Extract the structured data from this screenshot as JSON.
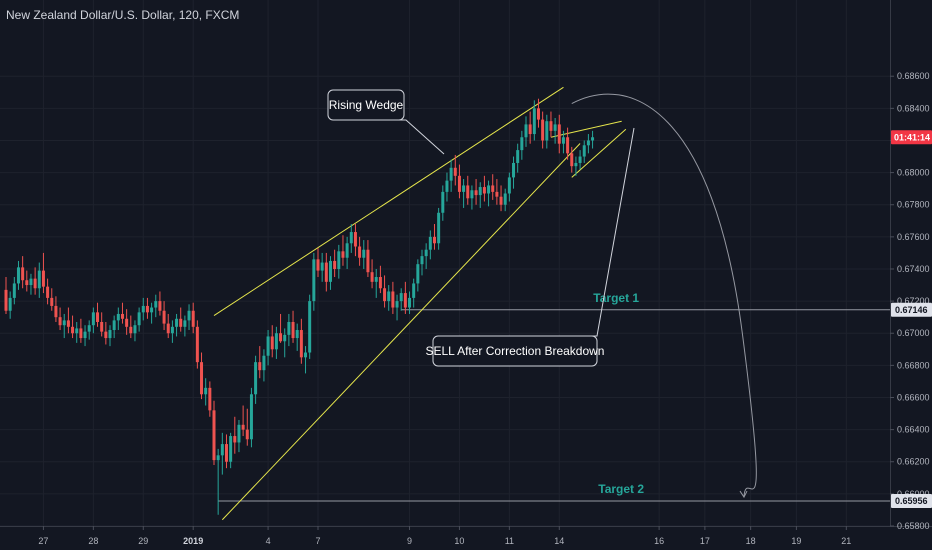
{
  "chart_data": {
    "type": "candlestick",
    "title": "New Zealand Dollar/U.S. Dollar, 120, FXCM",
    "ylim": [
      0.658,
      0.6895
    ],
    "y_ticks": [
      "0.68600",
      "0.68400",
      "0.68200",
      "0.68000",
      "0.67800",
      "0.67600",
      "0.67400",
      "0.67200",
      "0.67000",
      "0.66800",
      "0.66600",
      "0.66400",
      "0.66200",
      "0.66000",
      "0.65800"
    ],
    "x_ticks": [
      {
        "label": "27",
        "bar": 9
      },
      {
        "label": "28",
        "bar": 21
      },
      {
        "label": "29",
        "bar": 33
      },
      {
        "label": "2019",
        "bar": 45,
        "bold": true
      },
      {
        "label": "4",
        "bar": 63
      },
      {
        "label": "7",
        "bar": 75
      },
      {
        "label": "9",
        "bar": 97
      },
      {
        "label": "10",
        "bar": 109
      },
      {
        "label": "11",
        "bar": 121
      },
      {
        "label": "14",
        "bar": 133
      },
      {
        "label": "16",
        "bar": 157
      },
      {
        "label": "17",
        "bar": 168
      },
      {
        "label": "18",
        "bar": 179
      },
      {
        "label": "19",
        "bar": 190
      },
      {
        "label": "21",
        "bar": 202
      }
    ],
    "colors": {
      "up": "#26a69a",
      "down": "#ef5350",
      "background": "#131722",
      "wedge": "#e6e64c",
      "projection": "#9598a1",
      "target_text": "#26a69a",
      "price_tag": "#f23645"
    },
    "current_price_label": "01:41:14",
    "levels": [
      {
        "name": "Target 1",
        "value": 0.67146,
        "label": "0.67146",
        "start_bar": 95
      },
      {
        "name": "Target 2",
        "value": 0.65956,
        "label": "0.65956",
        "start_bar": 51
      }
    ],
    "wedge_lines": [
      {
        "from": {
          "bar": 50,
          "price": 0.6711
        },
        "to": {
          "bar": 134,
          "price": 0.68531
        }
      },
      {
        "from": {
          "bar": 52,
          "price": 0.65839
        },
        "to": {
          "bar": 138,
          "price": 0.68181
        }
      }
    ],
    "correction_channel": [
      {
        "from": {
          "bar": 138,
          "price": 0.6822
        },
        "to": {
          "bar": 138,
          "price": 0.6822
        }
      },
      {
        "from": {
          "bar": 136,
          "price": 0.6799
        },
        "to": {
          "bar": 142,
          "price": 0.6822
        }
      }
    ],
    "annotations": [
      {
        "text": "Rising Wedge",
        "target": {
          "bar": 97,
          "price": 0.6792
        },
        "anchor": {
          "bar": 84,
          "price": 0.6824
        }
      },
      {
        "text": "SELL After Correction Breakdown",
        "target": {
          "bar": 138,
          "price": 0.6803
        },
        "anchor": {
          "bar": 127,
          "price": 0.6689
        }
      }
    ],
    "candles": [
      [
        0.6727,
        0.6735,
        0.6712,
        0.6714
      ],
      [
        0.6714,
        0.6726,
        0.6709,
        0.6722
      ],
      [
        0.6722,
        0.6735,
        0.6718,
        0.6731
      ],
      [
        0.6731,
        0.6745,
        0.6727,
        0.6741
      ],
      [
        0.6741,
        0.6748,
        0.6728,
        0.6733
      ],
      [
        0.6733,
        0.6739,
        0.6726,
        0.673
      ],
      [
        0.673,
        0.6737,
        0.6724,
        0.6734
      ],
      [
        0.6734,
        0.6741,
        0.6724,
        0.6728
      ],
      [
        0.6728,
        0.6744,
        0.6722,
        0.6739
      ],
      [
        0.6739,
        0.675,
        0.6725,
        0.6729
      ],
      [
        0.6729,
        0.6734,
        0.6718,
        0.6722
      ],
      [
        0.6722,
        0.6728,
        0.6714,
        0.6717
      ],
      [
        0.6717,
        0.6723,
        0.6707,
        0.671
      ],
      [
        0.671,
        0.6716,
        0.6702,
        0.6705
      ],
      [
        0.6705,
        0.6712,
        0.6697,
        0.6708
      ],
      [
        0.6708,
        0.6716,
        0.67,
        0.6704
      ],
      [
        0.6704,
        0.6711,
        0.6697,
        0.67
      ],
      [
        0.67,
        0.6707,
        0.6694,
        0.6703
      ],
      [
        0.6703,
        0.6709,
        0.6694,
        0.6697
      ],
      [
        0.6697,
        0.6705,
        0.6692,
        0.6701
      ],
      [
        0.6701,
        0.6708,
        0.6696,
        0.6705
      ],
      [
        0.6705,
        0.6716,
        0.67,
        0.6713
      ],
      [
        0.6713,
        0.6719,
        0.6704,
        0.6707
      ],
      [
        0.6707,
        0.6713,
        0.6698,
        0.6701
      ],
      [
        0.6701,
        0.6707,
        0.6693,
        0.6697
      ],
      [
        0.6697,
        0.6705,
        0.6692,
        0.6702
      ],
      [
        0.6702,
        0.6711,
        0.6697,
        0.6708
      ],
      [
        0.6708,
        0.6716,
        0.6702,
        0.6712
      ],
      [
        0.6712,
        0.6719,
        0.6706,
        0.6709
      ],
      [
        0.6709,
        0.6715,
        0.6699,
        0.6704
      ],
      [
        0.6704,
        0.6711,
        0.6697,
        0.67
      ],
      [
        0.67,
        0.6708,
        0.6695,
        0.6705
      ],
      [
        0.6705,
        0.6716,
        0.6701,
        0.6713
      ],
      [
        0.6713,
        0.6722,
        0.6708,
        0.6717
      ],
      [
        0.6717,
        0.6722,
        0.6709,
        0.6713
      ],
      [
        0.6713,
        0.6719,
        0.6706,
        0.6716
      ],
      [
        0.6716,
        0.6724,
        0.671,
        0.672
      ],
      [
        0.672,
        0.6726,
        0.6711,
        0.6714
      ],
      [
        0.6714,
        0.672,
        0.6702,
        0.6706
      ],
      [
        0.6706,
        0.6712,
        0.6697,
        0.67
      ],
      [
        0.67,
        0.6708,
        0.6694,
        0.6704
      ],
      [
        0.6704,
        0.6712,
        0.6698,
        0.6709
      ],
      [
        0.6709,
        0.6716,
        0.6701,
        0.6704
      ],
      [
        0.6704,
        0.6711,
        0.6698,
        0.6708
      ],
      [
        0.6708,
        0.6718,
        0.6702,
        0.6714
      ],
      [
        0.6714,
        0.6719,
        0.67,
        0.6704
      ],
      [
        0.6704,
        0.6708,
        0.6678,
        0.6682
      ],
      [
        0.6682,
        0.6688,
        0.6659,
        0.6662
      ],
      [
        0.6662,
        0.6672,
        0.6655,
        0.6666
      ],
      [
        0.6666,
        0.667,
        0.6648,
        0.6652
      ],
      [
        0.6652,
        0.6658,
        0.6618,
        0.6621
      ],
      [
        0.6621,
        0.6628,
        0.6587,
        0.6624
      ],
      [
        0.6624,
        0.6638,
        0.6612,
        0.6631
      ],
      [
        0.6631,
        0.6637,
        0.6616,
        0.662
      ],
      [
        0.662,
        0.6638,
        0.6616,
        0.6636
      ],
      [
        0.6636,
        0.6648,
        0.6625,
        0.6632
      ],
      [
        0.6632,
        0.6646,
        0.6626,
        0.6643
      ],
      [
        0.6643,
        0.6655,
        0.6636,
        0.664
      ],
      [
        0.664,
        0.6653,
        0.663,
        0.6634
      ],
      [
        0.6634,
        0.6666,
        0.6629,
        0.6662
      ],
      [
        0.6662,
        0.6686,
        0.6656,
        0.6682
      ],
      [
        0.6682,
        0.6692,
        0.6672,
        0.6677
      ],
      [
        0.6677,
        0.669,
        0.667,
        0.6686
      ],
      [
        0.6686,
        0.6702,
        0.668,
        0.6698
      ],
      [
        0.6698,
        0.6705,
        0.6685,
        0.669
      ],
      [
        0.669,
        0.6704,
        0.6684,
        0.67
      ],
      [
        0.67,
        0.6712,
        0.6694,
        0.6695
      ],
      [
        0.6695,
        0.6703,
        0.6685,
        0.6699
      ],
      [
        0.6699,
        0.6712,
        0.6692,
        0.6707
      ],
      [
        0.6707,
        0.6714,
        0.6694,
        0.6697
      ],
      [
        0.6697,
        0.6706,
        0.6689,
        0.6702
      ],
      [
        0.6702,
        0.6709,
        0.6681,
        0.6685
      ],
      [
        0.6685,
        0.6692,
        0.6675,
        0.6688
      ],
      [
        0.6688,
        0.6724,
        0.6684,
        0.672
      ],
      [
        0.672,
        0.675,
        0.6714,
        0.6746
      ],
      [
        0.6746,
        0.6753,
        0.6735,
        0.6739
      ],
      [
        0.6739,
        0.675,
        0.6732,
        0.6744
      ],
      [
        0.6744,
        0.675,
        0.6726,
        0.6732
      ],
      [
        0.6732,
        0.6748,
        0.6727,
        0.6745
      ],
      [
        0.6745,
        0.6752,
        0.6735,
        0.674
      ],
      [
        0.674,
        0.6755,
        0.6734,
        0.6751
      ],
      [
        0.6751,
        0.6761,
        0.6742,
        0.6747
      ],
      [
        0.6747,
        0.676,
        0.674,
        0.6756
      ],
      [
        0.6756,
        0.6768,
        0.675,
        0.6763
      ],
      [
        0.6763,
        0.6768,
        0.6748,
        0.6754
      ],
      [
        0.6754,
        0.676,
        0.6742,
        0.6747
      ],
      [
        0.6747,
        0.6758,
        0.674,
        0.6752
      ],
      [
        0.6752,
        0.6758,
        0.6735,
        0.6738
      ],
      [
        0.6738,
        0.6746,
        0.6728,
        0.6732
      ],
      [
        0.6732,
        0.674,
        0.6722,
        0.6735
      ],
      [
        0.6735,
        0.6742,
        0.6725,
        0.6728
      ],
      [
        0.6728,
        0.6736,
        0.6716,
        0.672
      ],
      [
        0.672,
        0.673,
        0.6714,
        0.6726
      ],
      [
        0.6726,
        0.6732,
        0.6712,
        0.6716
      ],
      [
        0.6716,
        0.6724,
        0.6708,
        0.672
      ],
      [
        0.672,
        0.6728,
        0.6714,
        0.6725
      ],
      [
        0.6725,
        0.6732,
        0.6712,
        0.6716
      ],
      [
        0.6716,
        0.6726,
        0.6712,
        0.6722
      ],
      [
        0.6722,
        0.6734,
        0.6716,
        0.6731
      ],
      [
        0.6731,
        0.6746,
        0.6726,
        0.6743
      ],
      [
        0.6743,
        0.6752,
        0.6736,
        0.6748
      ],
      [
        0.6748,
        0.6756,
        0.674,
        0.6752
      ],
      [
        0.6752,
        0.6764,
        0.6746,
        0.676
      ],
      [
        0.676,
        0.6768,
        0.6752,
        0.6756
      ],
      [
        0.6756,
        0.6778,
        0.6752,
        0.6775
      ],
      [
        0.6775,
        0.6792,
        0.677,
        0.6788
      ],
      [
        0.6788,
        0.68,
        0.6782,
        0.6795
      ],
      [
        0.6795,
        0.6808,
        0.6788,
        0.6803
      ],
      [
        0.6803,
        0.6811,
        0.6792,
        0.6798
      ],
      [
        0.6798,
        0.6805,
        0.6784,
        0.6788
      ],
      [
        0.6788,
        0.6796,
        0.6778,
        0.6792
      ],
      [
        0.6792,
        0.6798,
        0.678,
        0.6784
      ],
      [
        0.6784,
        0.6792,
        0.6777,
        0.6789
      ],
      [
        0.6789,
        0.6796,
        0.678,
        0.6786
      ],
      [
        0.6786,
        0.6794,
        0.6778,
        0.6791
      ],
      [
        0.6791,
        0.6798,
        0.6782,
        0.6787
      ],
      [
        0.6787,
        0.6795,
        0.6779,
        0.6792
      ],
      [
        0.6792,
        0.6799,
        0.6783,
        0.6788
      ],
      [
        0.6788,
        0.6796,
        0.678,
        0.6785
      ],
      [
        0.6785,
        0.6792,
        0.6776,
        0.678
      ],
      [
        0.678,
        0.679,
        0.6776,
        0.6787
      ],
      [
        0.6787,
        0.68,
        0.6782,
        0.6797
      ],
      [
        0.6797,
        0.681,
        0.679,
        0.6806
      ],
      [
        0.6806,
        0.6818,
        0.68,
        0.6814
      ],
      [
        0.6814,
        0.6826,
        0.6808,
        0.6822
      ],
      [
        0.6822,
        0.6835,
        0.6816,
        0.683
      ],
      [
        0.683,
        0.6838,
        0.6818,
        0.6824
      ],
      [
        0.6824,
        0.6845,
        0.682,
        0.684
      ],
      [
        0.684,
        0.6846,
        0.6828,
        0.6833
      ],
      [
        0.6833,
        0.6838,
        0.6815,
        0.682
      ],
      [
        0.682,
        0.6836,
        0.6815,
        0.6832
      ],
      [
        0.6832,
        0.6838,
        0.6822,
        0.6826
      ],
      [
        0.6826,
        0.6834,
        0.6818,
        0.683
      ],
      [
        0.683,
        0.6836,
        0.6812,
        0.6818
      ],
      [
        0.6818,
        0.6826,
        0.6812,
        0.6822
      ],
      [
        0.6822,
        0.6828,
        0.6808,
        0.6812
      ],
      [
        0.6812,
        0.6816,
        0.68,
        0.6804
      ],
      [
        0.6804,
        0.681,
        0.6798,
        0.6806
      ],
      [
        0.6806,
        0.6814,
        0.6802,
        0.681
      ],
      [
        0.681,
        0.682,
        0.6806,
        0.6817
      ],
      [
        0.6817,
        0.6824,
        0.6812,
        0.682
      ],
      [
        0.682,
        0.6826,
        0.6815,
        0.6822
      ]
    ]
  }
}
